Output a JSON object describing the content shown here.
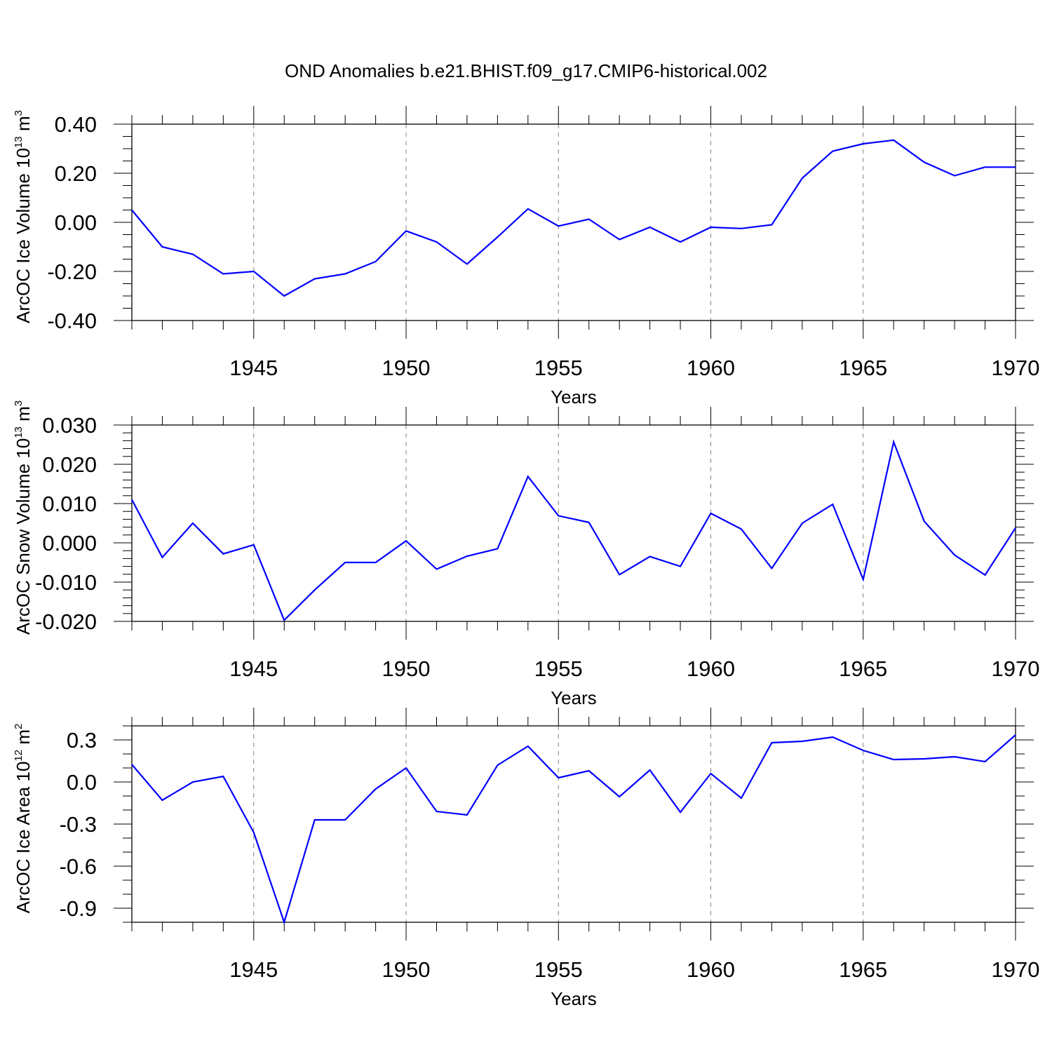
{
  "chart_data": {
    "title": "OND Anomalies b.e21.BHIST.f09_g17.CMIP6-historical.002",
    "line_color": "#0000ff",
    "panels": [
      {
        "type": "line",
        "ylabel_main": "ArcOC Ice Volume 10",
        "ylabel_exp": "13",
        "ylabel_unit": " m",
        "ylabel_unit_exp": "3",
        "xlabel": "Years",
        "xlim": [
          1941,
          1970
        ],
        "ylim": [
          -0.4,
          0.4
        ],
        "x_ticks": [
          1945,
          1950,
          1955,
          1960,
          1965,
          1970
        ],
        "x_tick_labels": [
          "1945",
          "1950",
          "1955",
          "1960",
          "1965",
          "1970"
        ],
        "y_ticks": [
          -0.4,
          -0.2,
          0.0,
          0.2,
          0.4
        ],
        "y_tick_labels": [
          "-0.40",
          "-0.20",
          "0.00",
          "0.20",
          "0.40"
        ],
        "y_minor_step": 0.05,
        "x": [
          1941,
          1942,
          1943,
          1944,
          1945,
          1946,
          1947,
          1948,
          1949,
          1950,
          1951,
          1952,
          1953,
          1954,
          1955,
          1956,
          1957,
          1958,
          1959,
          1960,
          1961,
          1962,
          1963,
          1964,
          1965,
          1966,
          1967,
          1968,
          1969,
          1970
        ],
        "y": [
          0.05,
          -0.1,
          -0.13,
          -0.21,
          -0.2,
          -0.3,
          -0.23,
          -0.21,
          -0.16,
          -0.035,
          -0.08,
          -0.17,
          -0.06,
          0.055,
          -0.015,
          0.013,
          -0.07,
          -0.02,
          -0.08,
          -0.02,
          -0.025,
          -0.01,
          0.18,
          0.29,
          0.32,
          0.335,
          0.245,
          0.19,
          0.225,
          0.225
        ]
      },
      {
        "type": "line",
        "ylabel_main": "ArcOC Snow Volume 10",
        "ylabel_exp": "13",
        "ylabel_unit": " m",
        "ylabel_unit_exp": "3",
        "xlabel": "Years",
        "xlim": [
          1941,
          1970
        ],
        "ylim": [
          -0.02,
          0.03
        ],
        "x_ticks": [
          1945,
          1950,
          1955,
          1960,
          1965,
          1970
        ],
        "x_tick_labels": [
          "1945",
          "1950",
          "1955",
          "1960",
          "1965",
          "1970"
        ],
        "y_ticks": [
          -0.02,
          -0.01,
          0.0,
          0.01,
          0.02,
          0.03
        ],
        "y_tick_labels": [
          "-0.020",
          "-0.010",
          "0.000",
          "0.010",
          "0.020",
          "0.030"
        ],
        "y_minor_step": 0.002,
        "x": [
          1941,
          1942,
          1943,
          1944,
          1945,
          1946,
          1947,
          1948,
          1949,
          1950,
          1951,
          1952,
          1953,
          1954,
          1955,
          1956,
          1957,
          1958,
          1959,
          1960,
          1961,
          1962,
          1963,
          1964,
          1965,
          1966,
          1967,
          1968,
          1969,
          1970
        ],
        "y": [
          0.011,
          -0.0037,
          0.005,
          -0.0028,
          -0.0005,
          -0.0197,
          -0.012,
          -0.005,
          -0.005,
          0.0005,
          -0.0067,
          -0.0034,
          -0.0015,
          0.0169,
          0.0069,
          0.0052,
          -0.0081,
          -0.0035,
          -0.006,
          0.0075,
          0.0035,
          -0.0065,
          0.005,
          0.0098,
          -0.0093,
          0.0257,
          0.0055,
          -0.0031,
          -0.0082,
          0.0038
        ]
      },
      {
        "type": "line",
        "ylabel_main": "ArcOC Ice Area 10",
        "ylabel_exp": "12",
        "ylabel_unit": " m",
        "ylabel_unit_exp": "2",
        "xlabel": "Years",
        "xlim": [
          1941,
          1970
        ],
        "ylim": [
          -1.0,
          0.4
        ],
        "x_ticks": [
          1945,
          1950,
          1955,
          1960,
          1965,
          1970
        ],
        "x_tick_labels": [
          "1945",
          "1950",
          "1955",
          "1960",
          "1965",
          "1970"
        ],
        "y_ticks": [
          -0.9,
          -0.6,
          -0.3,
          0.0,
          0.3
        ],
        "y_tick_labels": [
          "-0.9",
          "-0.6",
          "-0.3",
          "0.0",
          "0.3"
        ],
        "y_minor_step": 0.1,
        "x": [
          1941,
          1942,
          1943,
          1944,
          1945,
          1946,
          1947,
          1948,
          1949,
          1950,
          1951,
          1952,
          1953,
          1954,
          1955,
          1956,
          1957,
          1958,
          1959,
          1960,
          1961,
          1962,
          1963,
          1964,
          1965,
          1966,
          1967,
          1968,
          1969,
          1970
        ],
        "y": [
          0.125,
          -0.13,
          0.0,
          0.04,
          -0.36,
          -1.0,
          -0.27,
          -0.27,
          -0.05,
          0.1,
          -0.21,
          -0.235,
          0.12,
          0.255,
          0.03,
          0.08,
          -0.105,
          0.085,
          -0.215,
          0.06,
          -0.115,
          0.28,
          0.29,
          0.32,
          0.225,
          0.16,
          0.165,
          0.18,
          0.145,
          0.335
        ]
      }
    ]
  }
}
